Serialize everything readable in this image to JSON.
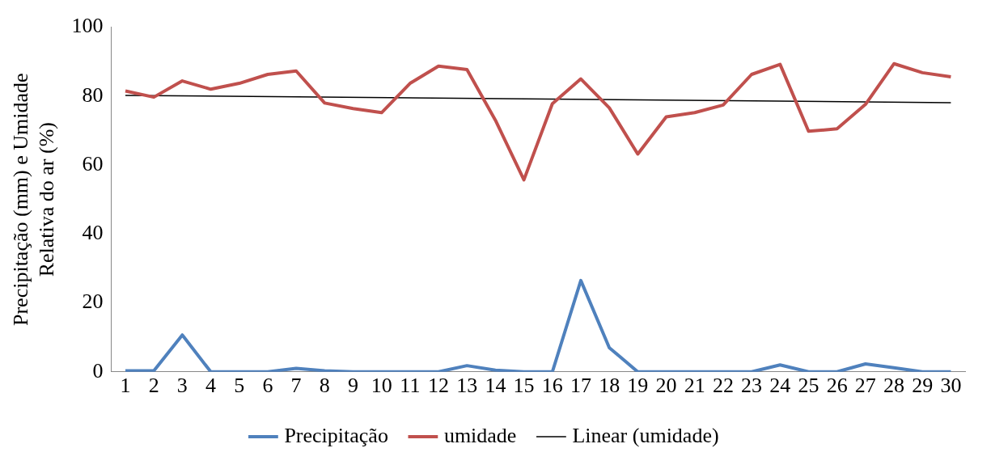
{
  "chart_data": {
    "type": "line",
    "ylabel": "Precipitação (mm) e Umidade\nRelativa do ar (%)",
    "x": [
      1,
      2,
      3,
      4,
      5,
      6,
      7,
      8,
      9,
      10,
      11,
      12,
      13,
      14,
      15,
      16,
      17,
      18,
      19,
      20,
      21,
      22,
      23,
      24,
      25,
      26,
      27,
      28,
      29,
      30
    ],
    "xlim": [
      0.5,
      30.5
    ],
    "xticks": [
      1,
      2,
      3,
      4,
      5,
      6,
      7,
      8,
      9,
      10,
      11,
      12,
      13,
      14,
      15,
      16,
      17,
      18,
      19,
      20,
      21,
      22,
      23,
      24,
      25,
      26,
      27,
      28,
      29,
      30
    ],
    "ylim": [
      0,
      100
    ],
    "yticks": [
      0,
      20,
      40,
      60,
      80,
      100
    ],
    "grid": false,
    "legend": "bottom",
    "marker": "none",
    "line_style": "solid",
    "series": [
      {
        "name": "Precipitação",
        "color": "#4f81bd",
        "values": [
          0.3,
          0.3,
          10.7,
          0,
          0,
          0,
          1,
          0.3,
          0,
          0,
          0,
          0,
          1.8,
          0.5,
          0,
          0,
          26.5,
          7,
          0,
          0,
          0,
          0,
          0,
          2,
          0,
          0,
          2.3,
          1.2,
          0,
          0
        ]
      },
      {
        "name": "umidade",
        "color": "#c0504d",
        "values": [
          81.5,
          79.7,
          84.4,
          82,
          83.7,
          86.3,
          87.3,
          78,
          76.4,
          75.2,
          83.7,
          88.7,
          87.7,
          73,
          55.7,
          77.8,
          85,
          76.6,
          63.2,
          74,
          75.2,
          77.4,
          86.3,
          89.2,
          69.8,
          70.5,
          77.6,
          89.4,
          86.8,
          85.6
        ]
      },
      {
        "name": "Linear (umidade)",
        "type": "line",
        "color": "#000000",
        "x": [
          1,
          30
        ],
        "values": [
          80.2,
          78.1
        ]
      }
    ]
  }
}
